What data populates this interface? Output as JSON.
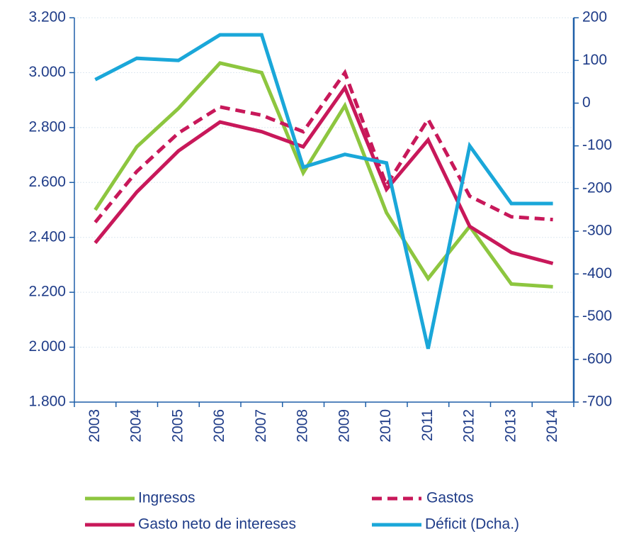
{
  "chart_data": {
    "type": "line",
    "categories": [
      "2003",
      "2004",
      "2005",
      "2006",
      "2007",
      "2008",
      "2009",
      "2010",
      "2011",
      "2012",
      "2013",
      "2014"
    ],
    "series": [
      {
        "name": "Ingresos",
        "color": "#8dc63f",
        "values": [
          2500,
          2730,
          2870,
          3035,
          3000,
          2635,
          2880,
          2490,
          2250,
          2440,
          2230,
          2220
        ]
      },
      {
        "name": "Gastos",
        "color": "#c8185a",
        "dashed": true,
        "values": [
          2455,
          2640,
          2780,
          2875,
          2845,
          2785,
          3000,
          2590,
          2830,
          2550,
          2475,
          2465
        ]
      },
      {
        "name": "Gasto neto de intereses",
        "color": "#c8185a",
        "values": [
          2380,
          2565,
          2715,
          2820,
          2785,
          2730,
          2945,
          2575,
          2755,
          2440,
          2345,
          2305
        ]
      },
      {
        "name": "Déficit (Dcha.)",
        "color": "#1aa7d9",
        "axis": "y2",
        "values": [
          55,
          105,
          100,
          160,
          160,
          -150,
          -120,
          -140,
          -575,
          -100,
          -235,
          -235
        ]
      }
    ],
    "ylim": [
      1800,
      3200
    ],
    "yticks": [
      {
        "value": 1800,
        "label": "1.800"
      },
      {
        "value": 2000,
        "label": "2.000"
      },
      {
        "value": 2200,
        "label": "2.200"
      },
      {
        "value": 2400,
        "label": "2.400"
      },
      {
        "value": 2600,
        "label": "2.600"
      },
      {
        "value": 2800,
        "label": "2.800"
      },
      {
        "value": 3000,
        "label": "3.000"
      },
      {
        "value": 3200,
        "label": "3.200"
      }
    ],
    "y2lim": [
      -700,
      200
    ],
    "y2ticks": [
      -700,
      -600,
      -500,
      -400,
      -300,
      -200,
      -100,
      0,
      100,
      200
    ],
    "grid": true
  }
}
